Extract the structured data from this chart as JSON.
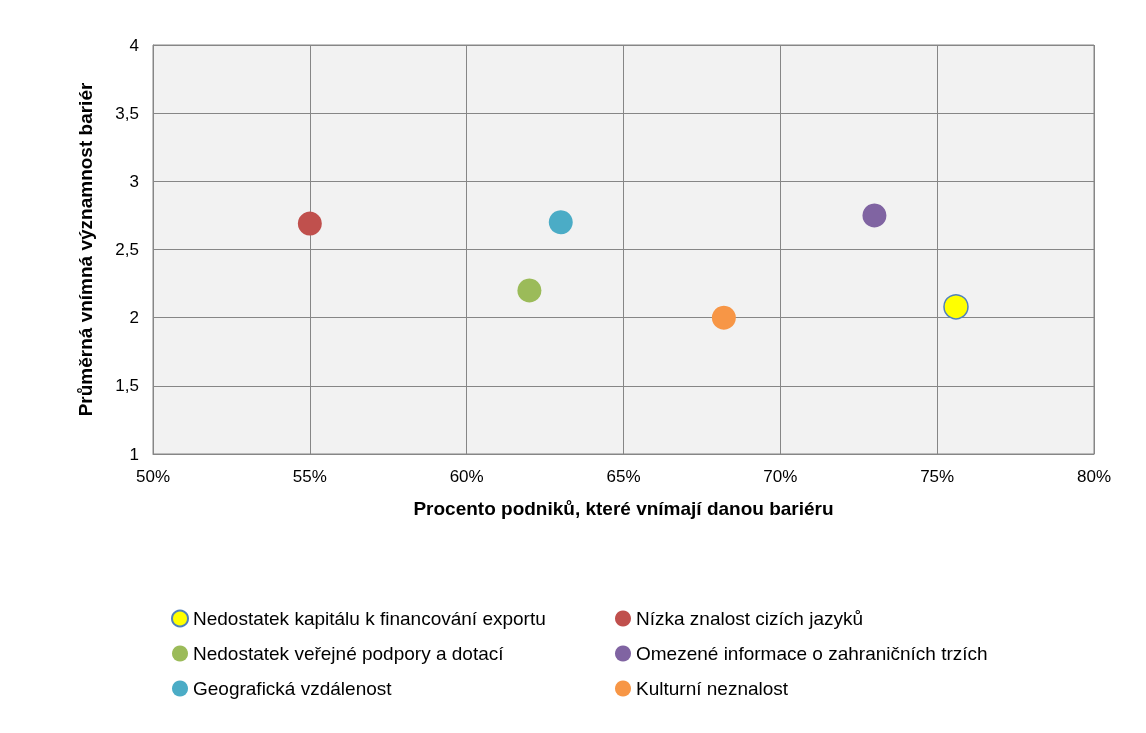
{
  "chart_data": {
    "type": "scatter",
    "xlabel": "Procento podniků, které vnímají danou bariéru",
    "ylabel": "Průměrná vnímná významnost bariér",
    "xlim": [
      50,
      80
    ],
    "xticks": [
      {
        "value": 50,
        "label": "50%"
      },
      {
        "value": 55,
        "label": "55%"
      },
      {
        "value": 60,
        "label": "60%"
      },
      {
        "value": 65,
        "label": "65%"
      },
      {
        "value": 70,
        "label": "70%"
      },
      {
        "value": 75,
        "label": "75%"
      },
      {
        "value": 80,
        "label": "80%"
      }
    ],
    "ylim": [
      1,
      4
    ],
    "yticks": [
      {
        "value": 1,
        "label": "1"
      },
      {
        "value": 1.5,
        "label": "1,5"
      },
      {
        "value": 2,
        "label": "2"
      },
      {
        "value": 2.5,
        "label": "2,5"
      },
      {
        "value": 3,
        "label": "3"
      },
      {
        "value": 3.5,
        "label": "3,5"
      },
      {
        "value": 4,
        "label": "4"
      }
    ],
    "grid": true,
    "legend": "bottom",
    "marker": "circle",
    "series": [
      {
        "name": "Nedostatek kapitálu k financování exportu",
        "color": "#ffff00",
        "x": [
          75.6
        ],
        "values": [
          2.08
        ]
      },
      {
        "name": "Nízka znalost cizích jazyků",
        "color": "#c0504d",
        "x": [
          55.0
        ],
        "values": [
          2.69
        ]
      },
      {
        "name": "Nedostatek veřejné podpory a dotací",
        "color": "#9bbb59",
        "x": [
          62.0
        ],
        "values": [
          2.2
        ]
      },
      {
        "name": "Omezené informace o zahraničních trzích",
        "color": "#8064a2",
        "x": [
          73.0
        ],
        "values": [
          2.75
        ]
      },
      {
        "name": "Geografická vzdálenost",
        "color": "#4bacc6",
        "x": [
          63.0
        ],
        "values": [
          2.7
        ]
      },
      {
        "name": "Kulturní neznalost",
        "color": "#f79646",
        "x": [
          68.2
        ],
        "values": [
          2.0
        ]
      }
    ]
  }
}
